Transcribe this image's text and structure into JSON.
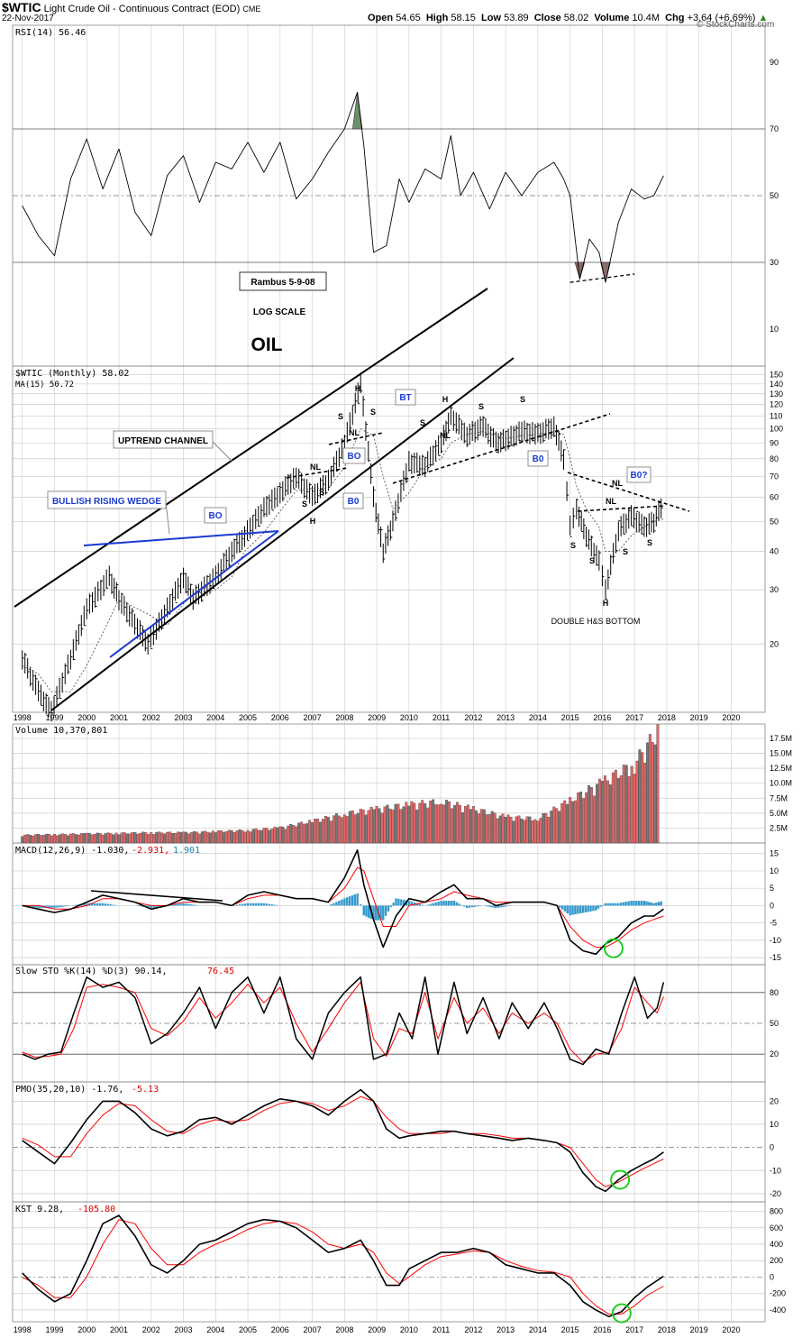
{
  "header": {
    "symbol": "$WTIC",
    "description": "Light Crude Oil - Continuous Contract (EOD)",
    "exchange": "CME",
    "date": "22-Nov-2017",
    "open_label": "Open",
    "open": "54.65",
    "high_label": "High",
    "high": "58.15",
    "low_label": "Low",
    "low": "53.89",
    "close_label": "Close",
    "close": "58.02",
    "volume_label": "Volume",
    "volume": "10.4M",
    "chg_label": "Chg",
    "chg": "+3.64 (+6.69%)",
    "credit": "© StockCharts.com"
  },
  "colors": {
    "grid": "#cccccc",
    "frame": "#888888",
    "line": "#000000",
    "signal": "#ff0000",
    "up_vol": "#e06666",
    "down_vol": "#777777",
    "macd_hist": "#3399cc",
    "rsi_over": "#6b8f6b",
    "rsi_under": "#8b6b6b",
    "wedge": "#1a3bd1",
    "label_blue": "#1a3bd1",
    "circle": "#22cc22"
  },
  "x_axis": {
    "years": [
      "1998",
      "1999",
      "2000",
      "2001",
      "2002",
      "2003",
      "2004",
      "2005",
      "2006",
      "2007",
      "2008",
      "2009",
      "2010",
      "2011",
      "2012",
      "2013",
      "2014",
      "2015",
      "2016",
      "2017",
      "2018",
      "2019",
      "2020"
    ]
  },
  "rsi_panel": {
    "legend": "RSI(14) 56.46",
    "ticks": [
      "90",
      "70",
      "50",
      "30",
      "10"
    ],
    "ann_rambus": "Rambus  5-9-08",
    "ann_log": "LOG SCALE",
    "ann_oil": "OIL"
  },
  "price_panel": {
    "legend": "$WTIC (Monthly) 58.02",
    "ma_legend": "MA(15) 50.72",
    "ticks": [
      "150",
      "140",
      "130",
      "120",
      "110",
      "100",
      "90",
      "80",
      "70",
      "60",
      "50",
      "40",
      "30",
      "20"
    ],
    "labels": {
      "uptrend": "UPTREND CHANNEL",
      "wedge": "BULLISH RISING WEDGE",
      "bo1": "BO",
      "bo2": "BO",
      "b0_2008": "B0",
      "bt": "BT",
      "b0_2014": "B0",
      "b0q": "B0?",
      "h1": "H",
      "h2": "H",
      "h3": "H",
      "h4": "H",
      "s": "S",
      "nl": "NL",
      "double": "DOUBLE H&S BOTTOM"
    }
  },
  "volume_panel": {
    "legend": "Volume 10,370,801",
    "ticks": [
      "17.5M",
      "15.0M",
      "12.5M",
      "10.0M",
      "7.5M",
      "5.0M",
      "2.5M"
    ]
  },
  "macd_panel": {
    "legend_a": "MACD(12,26,9) -1.030,",
    "legend_b": "-2.931,",
    "legend_c": "1.901",
    "ticks": [
      "15",
      "10",
      "5",
      "0",
      "-5",
      "-10",
      "-15"
    ]
  },
  "sto_panel": {
    "legend_a": "Slow STO %K(14) %D(3) 90.14,",
    "legend_b": "76.45",
    "ticks": [
      "80",
      "50",
      "20"
    ]
  },
  "pmo_panel": {
    "legend_a": "PMO(35,20,10) -1.76,",
    "legend_b": "-5.13",
    "ticks": [
      "20",
      "10",
      "0",
      "-10",
      "-20"
    ]
  },
  "kst_panel": {
    "legend_a": "KST 9.28,",
    "legend_b": "-105.80",
    "ticks": [
      "800",
      "600",
      "400",
      "200",
      "0",
      "-200",
      "-400"
    ]
  },
  "chart_data": [
    {
      "type": "line",
      "title": "RSI(14)",
      "x": [
        1998.0,
        1998.5,
        1999.0,
        1999.5,
        2000.0,
        2000.5,
        2001.0,
        2001.5,
        2002.0,
        2002.5,
        2003.0,
        2003.5,
        2004.0,
        2004.5,
        2005.0,
        2005.5,
        2006.0,
        2006.5,
        2007.0,
        2007.5,
        2008.0,
        2008.4,
        2008.6,
        2008.9,
        2009.3,
        2009.7,
        2010.0,
        2010.5,
        2011.0,
        2011.3,
        2011.6,
        2012.0,
        2012.5,
        2013.0,
        2013.5,
        2014.0,
        2014.5,
        2014.8,
        2015.0,
        2015.3,
        2015.6,
        2015.9,
        2016.1,
        2016.5,
        2016.9,
        2017.3,
        2017.6,
        2017.9
      ],
      "series": [
        {
          "values": [
            47,
            38,
            32,
            55,
            67,
            52,
            64,
            45,
            38,
            56,
            62,
            48,
            60,
            58,
            66,
            57,
            66,
            49,
            55,
            63,
            70,
            81,
            65,
            33,
            35,
            55,
            48,
            58,
            55,
            68,
            50,
            57,
            46,
            57,
            50,
            57,
            60,
            55,
            50,
            25,
            37,
            33,
            24,
            42,
            52,
            49,
            50,
            56
          ]
        }
      ],
      "ylim": [
        0,
        100
      ],
      "reference_lines": [
        30,
        50,
        70
      ]
    },
    {
      "type": "line",
      "title": "$WTIC (Monthly)",
      "log_scale": true,
      "x": [
        1998.0,
        1998.5,
        1998.9,
        1999.5,
        2000.0,
        2000.7,
        2001.0,
        2001.9,
        2002.5,
        2003.0,
        2003.3,
        2004.0,
        2004.5,
        2004.9,
        2005.5,
        2006.0,
        2006.5,
        2007.0,
        2007.5,
        2008.0,
        2008.5,
        2008.9,
        2009.2,
        2009.5,
        2010.0,
        2010.5,
        2011.0,
        2011.3,
        2011.8,
        2012.3,
        2012.7,
        2013.0,
        2013.5,
        2014.0,
        2014.5,
        2014.8,
        2015.0,
        2015.2,
        2015.5,
        2015.9,
        2016.1,
        2016.5,
        2016.9,
        2017.3,
        2017.6,
        2017.9
      ],
      "series": [
        {
          "values": [
            18,
            14,
            12,
            18,
            26,
            33,
            28,
            20,
            26,
            33,
            28,
            33,
            40,
            45,
            55,
            62,
            70,
            60,
            68,
            90,
            140,
            60,
            40,
            50,
            78,
            76,
            90,
            110,
            95,
            102,
            90,
            92,
            98,
            96,
            102,
            80,
            48,
            55,
            45,
            37,
            30,
            47,
            52,
            48,
            50,
            58
          ]
        },
        {
          "values": [
            17,
            16,
            14,
            14,
            17,
            24,
            28,
            25,
            23,
            27,
            29,
            30,
            33,
            40,
            46,
            54,
            63,
            64,
            64,
            75,
            100,
            95,
            70,
            55,
            62,
            75,
            80,
            90,
            96,
            98,
            95,
            93,
            95,
            96,
            98,
            96,
            80,
            65,
            55,
            48,
            40,
            40,
            45,
            48,
            50,
            51
          ]
        }
      ],
      "ylim": [
        12,
        160
      ]
    },
    {
      "type": "bar",
      "title": "Volume",
      "x": [
        1998,
        1999,
        2000,
        2001,
        2002,
        2003,
        2004,
        2005,
        2006,
        2007,
        2008,
        2009,
        2010,
        2011,
        2012,
        2013,
        2014,
        2015,
        2016,
        2017,
        2017.8
      ],
      "values": [
        1.3,
        1.4,
        1.5,
        1.6,
        1.7,
        1.7,
        1.9,
        2.1,
        2.5,
        3.6,
        4.8,
        5.6,
        6.3,
        6.8,
        5.6,
        4.3,
        4.0,
        7.0,
        10.0,
        13.0,
        19.0
      ],
      "ylim": [
        0,
        19
      ]
    },
    {
      "type": "line",
      "title": "MACD(12,26,9)",
      "x": [
        1998.0,
        1998.5,
        1999.0,
        1999.5,
        2000.0,
        2000.5,
        2001.0,
        2001.5,
        2002.0,
        2002.5,
        2003.0,
        2003.5,
        2004.0,
        2004.5,
        2005.0,
        2005.5,
        2006.0,
        2006.5,
        2007.0,
        2007.5,
        2008.0,
        2008.4,
        2008.6,
        2008.9,
        2009.2,
        2009.6,
        2010.0,
        2010.5,
        2011.0,
        2011.4,
        2011.8,
        2012.3,
        2012.7,
        2013.2,
        2013.7,
        2014.2,
        2014.6,
        2015.0,
        2015.4,
        2015.8,
        2016.1,
        2016.5,
        2016.9,
        2017.3,
        2017.6,
        2017.9
      ],
      "series": [
        {
          "values": [
            0,
            -1,
            -2,
            -1,
            1,
            3,
            2,
            1,
            -1,
            0,
            2,
            1,
            1,
            0,
            3,
            4,
            3,
            2,
            2,
            1,
            8,
            16,
            6,
            -4,
            -12,
            -3,
            2,
            1,
            4,
            6,
            2,
            2,
            0,
            1,
            1,
            1,
            0,
            -10,
            -13,
            -14,
            -11,
            -9,
            -5,
            -3,
            -3,
            -1
          ]
        },
        {
          "values": [
            0,
            0,
            -1,
            -1,
            0,
            2,
            2,
            1,
            0,
            0,
            1,
            1,
            1,
            0,
            2,
            3,
            3,
            2,
            2,
            1,
            5,
            11,
            10,
            2,
            -6,
            -6,
            0,
            1,
            2,
            4,
            3,
            2,
            1,
            1,
            1,
            1,
            0,
            -6,
            -10,
            -12,
            -12,
            -10,
            -7,
            -5,
            -4,
            -3
          ]
        }
      ],
      "ylim": [
        -16,
        17
      ]
    },
    {
      "type": "line",
      "title": "Slow STO %K(14) %D(3)",
      "x": [
        1998.0,
        1998.4,
        1998.8,
        1999.2,
        1999.6,
        2000.0,
        2000.5,
        2001.0,
        2001.5,
        2002.0,
        2002.5,
        2003.0,
        2003.5,
        2004.0,
        2004.5,
        2005.0,
        2005.5,
        2006.0,
        2006.5,
        2007.0,
        2007.5,
        2008.0,
        2008.5,
        2008.9,
        2009.3,
        2009.7,
        2010.1,
        2010.5,
        2010.9,
        2011.4,
        2011.8,
        2012.3,
        2012.8,
        2013.2,
        2013.7,
        2014.2,
        2014.6,
        2015.0,
        2015.4,
        2015.8,
        2016.2,
        2016.6,
        2017.0,
        2017.4,
        2017.7,
        2017.9
      ],
      "series": [
        {
          "values": [
            20,
            15,
            20,
            22,
            60,
            95,
            85,
            90,
            75,
            30,
            40,
            60,
            85,
            45,
            80,
            95,
            60,
            95,
            35,
            15,
            60,
            80,
            95,
            15,
            20,
            60,
            35,
            95,
            20,
            90,
            40,
            75,
            35,
            70,
            45,
            70,
            45,
            15,
            10,
            25,
            20,
            60,
            95,
            55,
            65,
            90
          ]
        },
        {
          "values": [
            22,
            17,
            18,
            20,
            45,
            85,
            88,
            85,
            80,
            45,
            38,
            52,
            75,
            55,
            70,
            88,
            70,
            85,
            50,
            22,
            45,
            70,
            90,
            35,
            18,
            45,
            40,
            80,
            35,
            75,
            50,
            65,
            40,
            60,
            50,
            60,
            50,
            25,
            12,
            20,
            22,
            45,
            85,
            70,
            60,
            76
          ]
        }
      ],
      "ylim": [
        0,
        100
      ],
      "reference_lines": [
        20,
        50,
        80
      ]
    },
    {
      "type": "line",
      "title": "PMO(35,20,10)",
      "x": [
        1998.0,
        1998.5,
        1999.0,
        1999.5,
        2000.0,
        2000.5,
        2001.0,
        2001.5,
        2002.0,
        2002.5,
        2003.0,
        2003.5,
        2004.0,
        2004.5,
        2005.0,
        2005.5,
        2006.0,
        2006.5,
        2007.0,
        2007.5,
        2008.0,
        2008.5,
        2008.9,
        2009.3,
        2009.7,
        2010.0,
        2010.5,
        2011.0,
        2011.4,
        2011.8,
        2012.3,
        2012.8,
        2013.2,
        2013.7,
        2014.2,
        2014.6,
        2015.0,
        2015.4,
        2015.8,
        2016.1,
        2016.5,
        2016.9,
        2017.3,
        2017.6,
        2017.9
      ],
      "series": [
        {
          "values": [
            3,
            -2,
            -7,
            2,
            12,
            20,
            20,
            15,
            8,
            5,
            7,
            12,
            13,
            10,
            14,
            18,
            21,
            20,
            18,
            14,
            20,
            25,
            20,
            8,
            4,
            5,
            6,
            7,
            7,
            6,
            5,
            4,
            3,
            4,
            3,
            2,
            -2,
            -11,
            -17,
            -19,
            -14,
            -10,
            -7,
            -5,
            -2
          ]
        },
        {
          "values": [
            4,
            1,
            -4,
            -4,
            6,
            14,
            19,
            18,
            12,
            7,
            6,
            10,
            12,
            11,
            12,
            16,
            19,
            20,
            19,
            16,
            18,
            22,
            20,
            13,
            8,
            6,
            6,
            6,
            7,
            6,
            6,
            5,
            4,
            4,
            3,
            2,
            0,
            -7,
            -14,
            -17,
            -15,
            -12,
            -9,
            -7,
            -5
          ]
        }
      ],
      "ylim": [
        -22,
        26
      ],
      "reference_lines": [
        0
      ]
    },
    {
      "type": "line",
      "title": "KST",
      "x": [
        1998.0,
        1998.5,
        1999.0,
        1999.5,
        2000.0,
        2000.5,
        2001.0,
        2001.5,
        2002.0,
        2002.5,
        2003.0,
        2003.5,
        2004.0,
        2004.5,
        2005.0,
        2005.5,
        2006.0,
        2006.5,
        2007.0,
        2007.5,
        2008.0,
        2008.5,
        2008.9,
        2009.3,
        2009.7,
        2010.0,
        2010.5,
        2011.0,
        2011.5,
        2012.0,
        2012.5,
        2013.0,
        2013.5,
        2014.0,
        2014.5,
        2015.0,
        2015.4,
        2015.8,
        2016.2,
        2016.6,
        2017.0,
        2017.4,
        2017.9
      ],
      "series": [
        {
          "values": [
            50,
            -150,
            -300,
            -200,
            200,
            650,
            750,
            500,
            150,
            50,
            200,
            400,
            450,
            550,
            650,
            700,
            680,
            600,
            450,
            300,
            350,
            450,
            200,
            -100,
            -100,
            100,
            200,
            300,
            300,
            350,
            300,
            150,
            100,
            50,
            50,
            -100,
            -300,
            -400,
            -480,
            -420,
            -250,
            -120,
            10
          ]
        },
        {
          "values": [
            0,
            -100,
            -250,
            -250,
            0,
            400,
            700,
            650,
            350,
            150,
            150,
            300,
            400,
            480,
            580,
            650,
            680,
            650,
            550,
            400,
            350,
            400,
            300,
            50,
            -80,
            0,
            150,
            250,
            280,
            320,
            300,
            200,
            130,
            80,
            60,
            0,
            -200,
            -350,
            -450,
            -450,
            -350,
            -220,
            -110
          ]
        }
      ],
      "ylim": [
        -500,
        850
      ],
      "reference_lines": [
        0
      ]
    }
  ]
}
